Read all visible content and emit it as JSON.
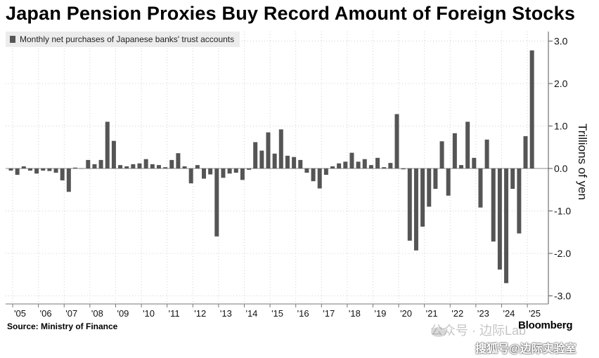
{
  "chart_data": {
    "type": "bar",
    "title": "Japan Pension Proxies Buy Record Amount of Foreign Stocks",
    "legend": "Monthly net purchases of Japanese banks' trust accounts",
    "ylabel": "Trillions of yen",
    "ylim": [
      -3.0,
      3.0
    ],
    "yticks": [
      "3.0",
      "2.0",
      "1.0",
      "0.0",
      "-1.0",
      "-2.0",
      "-3.0"
    ],
    "ytick_values": [
      3.0,
      2.0,
      1.0,
      0.0,
      -1.0,
      -2.0,
      -3.0
    ],
    "xlabels": [
      "'05",
      "'06",
      "'07",
      "'08",
      "'09",
      "'10",
      "'11",
      "'12",
      "'13",
      "'14",
      "'15",
      "'16",
      "'17",
      "'18",
      "'19",
      "'20",
      "'21",
      "'22",
      "'23",
      "'24",
      "'25"
    ],
    "grid": true,
    "bar_color": "#555555",
    "periods": [
      "2004 Q4",
      "2005 Q1",
      "2005 Q2",
      "2005 Q3",
      "2005 Q4",
      "2006 Q1",
      "2006 Q2",
      "2006 Q3",
      "2006 Q4",
      "2007 Q1",
      "2007 Q2",
      "2007 Q3",
      "2007 Q4",
      "2008 Q1",
      "2008 Q2",
      "2008 Q3",
      "2008 Q4",
      "2009 Q1",
      "2009 Q2",
      "2009 Q3",
      "2009 Q4",
      "2010 Q1",
      "2010 Q2",
      "2010 Q3",
      "2010 Q4",
      "2011 Q1",
      "2011 Q2",
      "2011 Q3",
      "2011 Q4",
      "2012 Q1",
      "2012 Q2",
      "2012 Q3",
      "2012 Q4",
      "2013 Q1",
      "2013 Q2",
      "2013 Q3",
      "2013 Q4",
      "2014 Q1",
      "2014 Q2",
      "2014 Q3",
      "2014 Q4",
      "2015 Q1",
      "2015 Q2",
      "2015 Q3",
      "2015 Q4",
      "2016 Q1",
      "2016 Q2",
      "2016 Q3",
      "2016 Q4",
      "2017 Q1",
      "2017 Q2",
      "2017 Q3",
      "2017 Q4",
      "2018 Q1",
      "2018 Q2",
      "2018 Q3",
      "2018 Q4",
      "2019 Q1",
      "2019 Q2",
      "2019 Q3",
      "2019 Q4",
      "2020 Q1",
      "2020 Q2",
      "2020 Q3",
      "2020 Q4",
      "2021 Q1",
      "2021 Q2",
      "2021 Q3",
      "2021 Q4",
      "2022 Q1",
      "2022 Q2",
      "2022 Q3",
      "2022 Q4",
      "2023 Q1",
      "2023 Q2",
      "2023 Q3",
      "2023 Q4",
      "2024 Q1",
      "2024 Q2",
      "2024 Q3",
      "2024 Q4",
      "2025 Q1"
    ],
    "values": [
      -0.05,
      -0.15,
      0.05,
      -0.05,
      -0.12,
      -0.05,
      -0.06,
      -0.1,
      -0.28,
      -0.55,
      0.02,
      0,
      0.2,
      0.1,
      0.2,
      1.1,
      0.65,
      0.08,
      0.05,
      0.1,
      0.12,
      0.22,
      0.1,
      0.08,
      0.03,
      0.2,
      0.36,
      0.05,
      -0.35,
      0.08,
      -0.24,
      -0.14,
      -1.6,
      -0.22,
      -0.12,
      -0.1,
      -0.27,
      -0.03,
      0.62,
      0.42,
      0.85,
      0.35,
      0.92,
      0.3,
      0.27,
      0.2,
      -0.1,
      -0.3,
      -0.47,
      -0.15,
      0.05,
      0.12,
      0.16,
      0.37,
      0.16,
      0.22,
      0.08,
      0.25,
      0.03,
      0.13,
      1.28,
      -0.02,
      -1.7,
      -1.93,
      -1.37,
      -0.9,
      -0.48,
      0.64,
      -0.64,
      0.83,
      0.08,
      1.1,
      0.25,
      -0.92,
      0.68,
      -1.72,
      -2.38,
      -2.7,
      -0.48,
      -1.53,
      0.76,
      2.78
    ]
  },
  "footer": {
    "source": "Source: Ministry of Finance",
    "brand": "Bloomberg",
    "watermark_top": "公众号 · 边际Lab",
    "watermark_bottom": "搜狐号@边际实验室"
  }
}
